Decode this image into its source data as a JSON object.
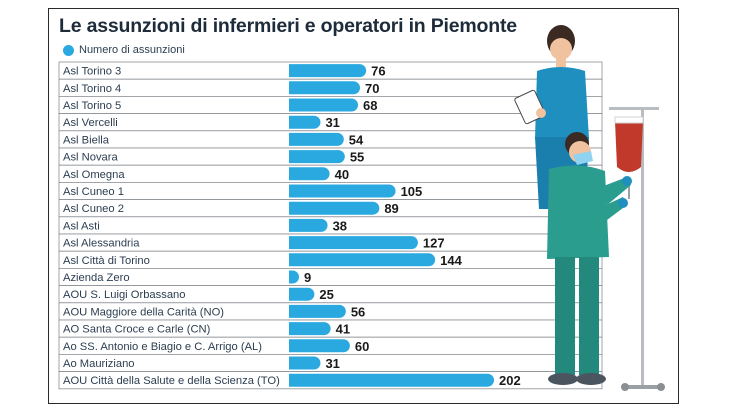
{
  "chart_data": {
    "type": "bar",
    "orientation": "horizontal",
    "title": "Le assunzioni di infermieri e operatori in Piemonte",
    "series": [
      {
        "name": "Numero di assunzioni",
        "color": "#2aa9e0"
      }
    ],
    "categories": [
      "Asl Torino 3",
      "Asl Torino 4",
      "Asl Torino 5",
      "Asl Vercelli",
      "Asl Biella",
      "Asl Novara",
      "Asl Omegna",
      "Asl Cuneo 1",
      "Asl Cuneo 2",
      "Asl Asti",
      "Asl Alessandria",
      "Asl Città di Torino",
      "Azienda Zero",
      "AOU S. Luigi Orbassano",
      "AOU Maggiore della Carità (NO)",
      "AO Santa Croce e Carle (CN)",
      "Ao SS. Antonio e Biagio e C. Arrigo (AL)",
      "Ao Mauriziano",
      "AOU Città della Salute e della Scienza (TO)"
    ],
    "values": [
      76,
      70,
      68,
      31,
      54,
      55,
      40,
      105,
      89,
      38,
      127,
      144,
      9,
      25,
      56,
      41,
      60,
      31,
      202
    ],
    "value_labels": [
      "76",
      "70",
      "68",
      "31",
      "54",
      "55",
      "40",
      "105",
      "89",
      "38",
      "127",
      "144",
      "9",
      "25",
      "56",
      "41",
      "60",
      "31",
      "202"
    ],
    "xlim": [
      0,
      202
    ],
    "legend": "top-left",
    "grid": false
  },
  "colors": {
    "bar": "#2aa9e0",
    "row_border": "#8a8f94",
    "label_text": "#2c3e50",
    "scrub_top": "#1f8fbf",
    "scrub_body": "#2a9d8f",
    "skin": "#f0c2a0",
    "hair": "#3a2a22"
  },
  "illustration": {
    "left_figure": "nurse-with-clipboard",
    "right_figure": "nurse-with-mask-and-syringe",
    "prop": "iv-drip-stand"
  }
}
